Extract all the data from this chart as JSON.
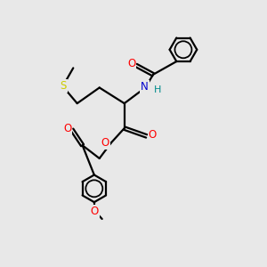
{
  "bg_color": "#e8e8e8",
  "bond_color": "#000000",
  "O_color": "#ff0000",
  "N_color": "#0000cd",
  "S_color": "#cccc00",
  "H_color": "#008b8b",
  "lw": 1.6,
  "fs": 8.5,
  "r": 0.52,
  "xlim": [
    0,
    10
  ],
  "ylim": [
    0,
    10
  ]
}
